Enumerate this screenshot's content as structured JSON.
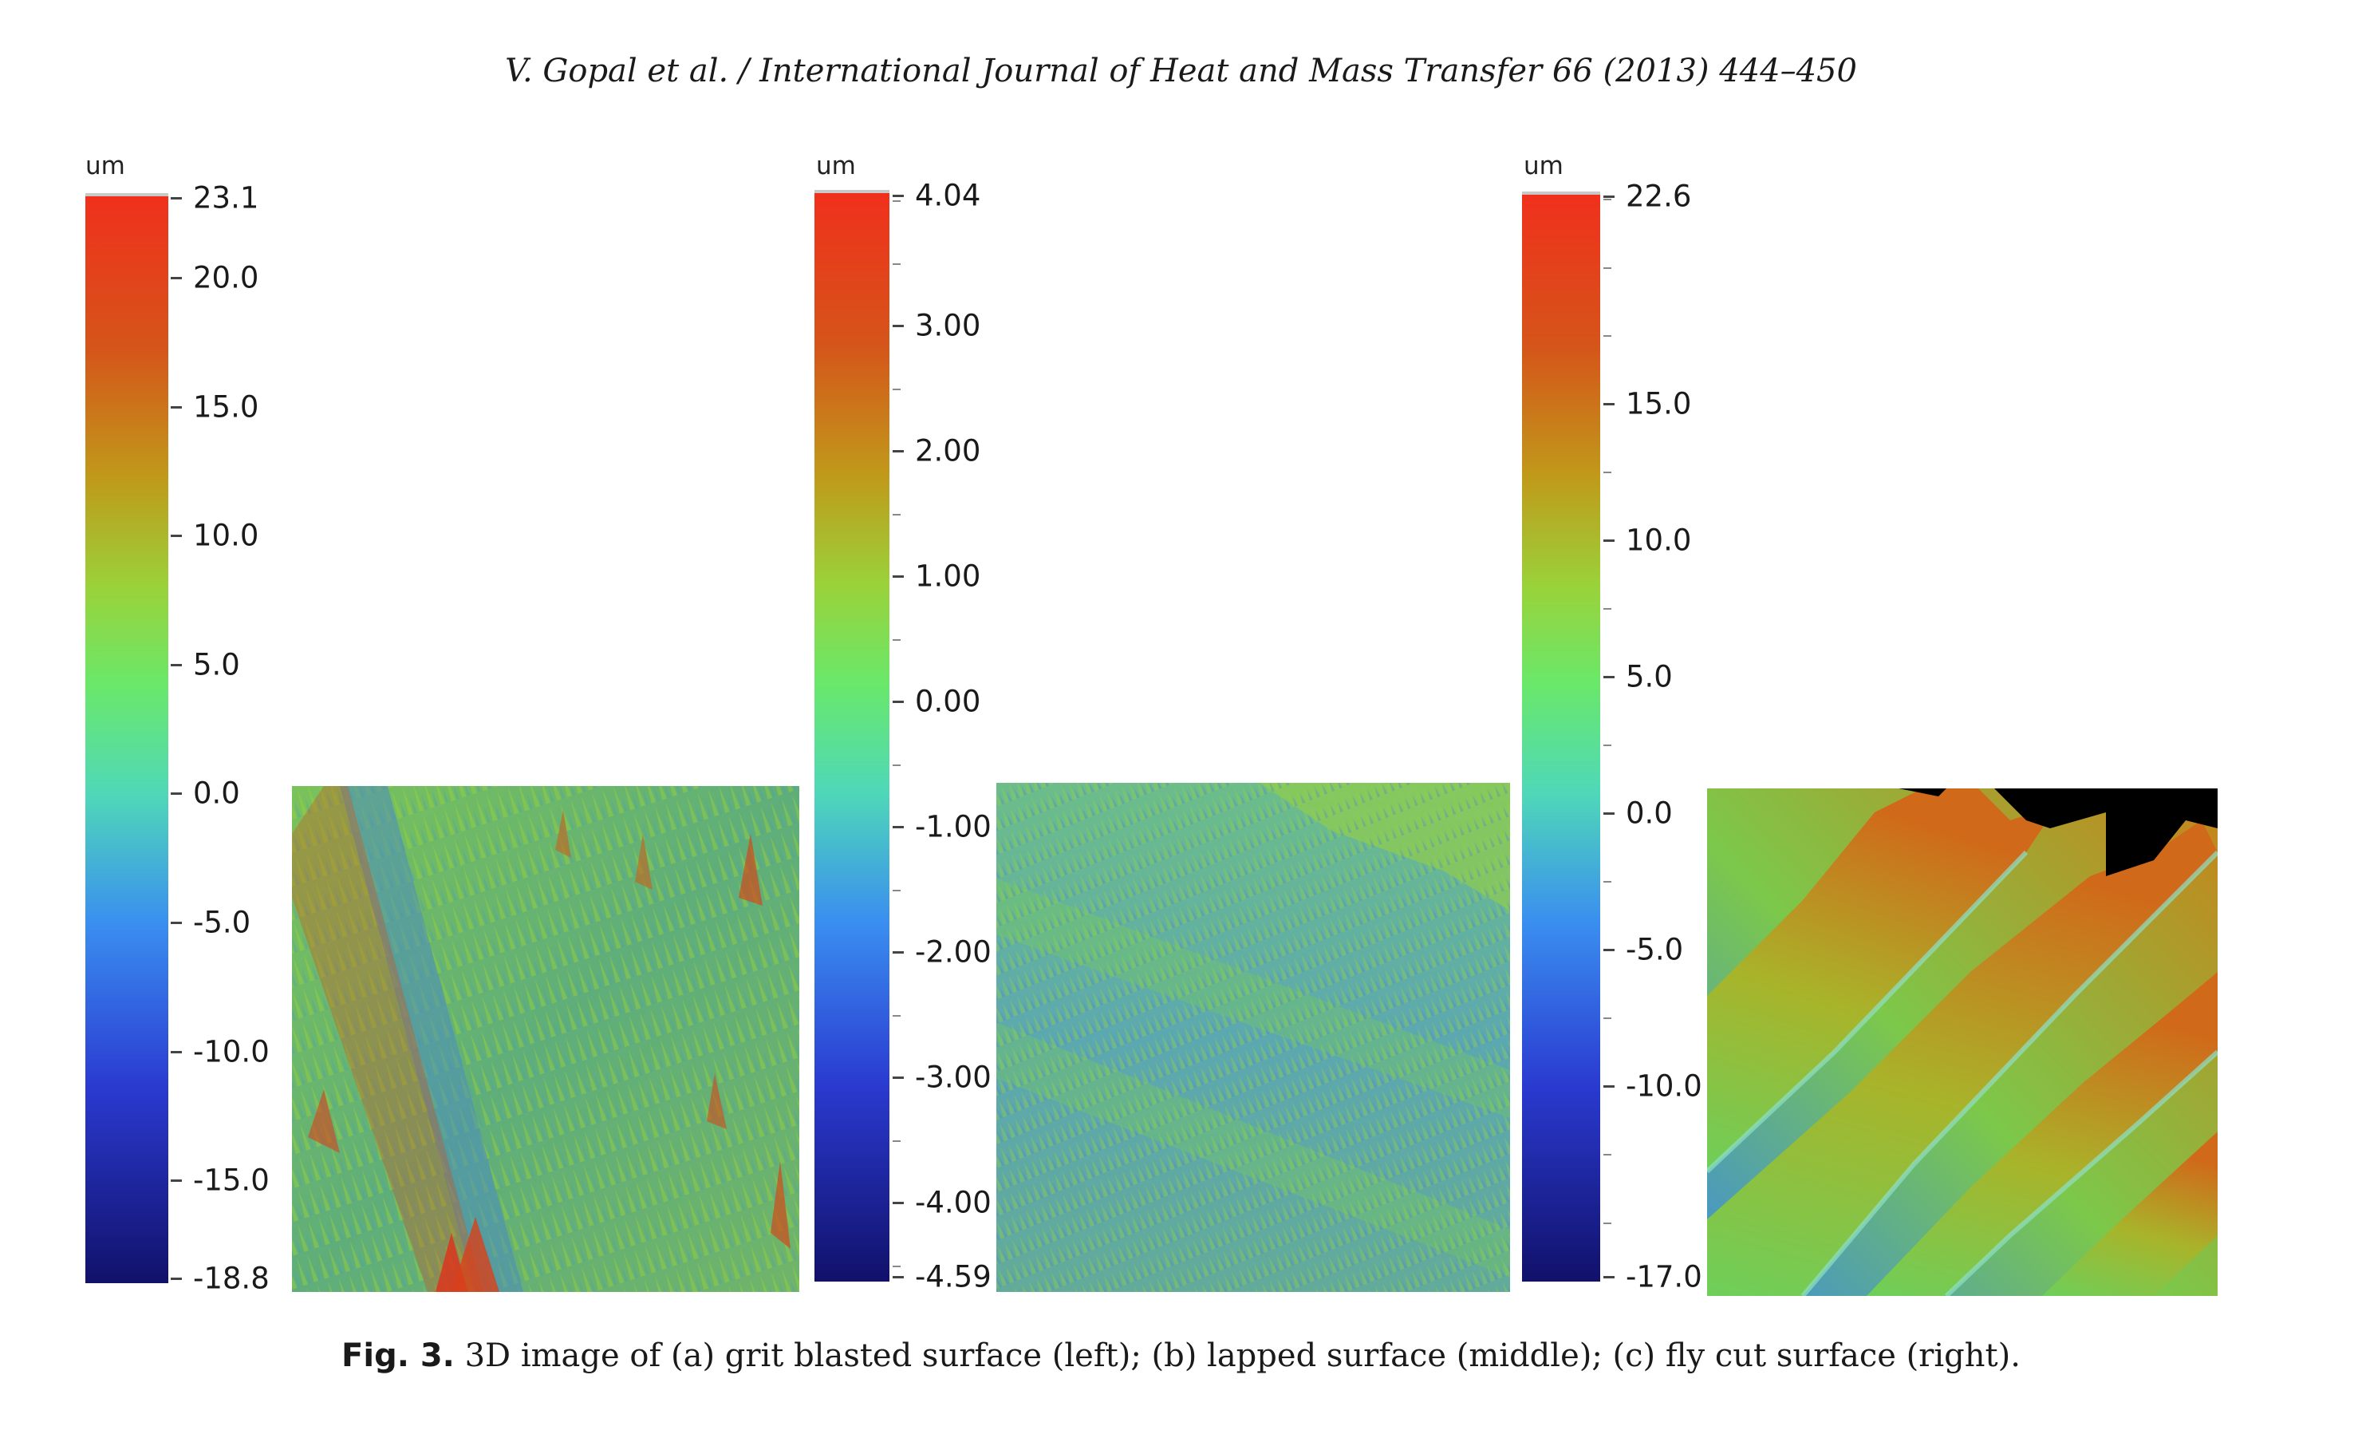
{
  "header": "V. Gopal et al. / International Journal of Heat and Mass Transfer 66 (2013) 444–450",
  "figure": {
    "label": "Fig. 3.",
    "caption": "3D image of (a) grit blasted surface (left); (b) lapped surface (middle); (c) fly cut surface (right)."
  },
  "panels": [
    {
      "id": "a",
      "unit": "um",
      "range_min": -18.8,
      "range_max": 23.1,
      "ticks": [
        "23.1",
        "20.0",
        "15.0",
        "10.0",
        "5.0",
        "0.0",
        "-5.0",
        "-10.0",
        "-15.0",
        "-18.8"
      ],
      "tick_values": [
        23.1,
        20.0,
        15.0,
        10.0,
        5.0,
        0.0,
        -5.0,
        -10.0,
        -15.0,
        -18.8
      ]
    },
    {
      "id": "b",
      "unit": "um",
      "range_min": -4.59,
      "range_max": 4.04,
      "ticks": [
        "4.04",
        "3.00",
        "2.00",
        "1.00",
        "0.00",
        "-1.00",
        "-2.00",
        "-3.00",
        "-4.00",
        "-4.59"
      ],
      "tick_values": [
        4.04,
        3.0,
        2.0,
        1.0,
        0.0,
        -1.0,
        -2.0,
        -3.0,
        -4.0,
        -4.59
      ]
    },
    {
      "id": "c",
      "unit": "um",
      "range_min": -17.0,
      "range_max": 22.6,
      "ticks": [
        "22.6",
        "15.0",
        "10.0",
        "5.0",
        "0.0",
        "-5.0",
        "-10.0",
        "-17.0"
      ],
      "tick_values": [
        22.6,
        15.0,
        10.0,
        5.0,
        0.0,
        -5.0,
        -10.0,
        -17.0
      ]
    }
  ],
  "colors": {
    "low": "#11116a",
    "mid": "#6ae86a",
    "high": "#f0301c"
  }
}
